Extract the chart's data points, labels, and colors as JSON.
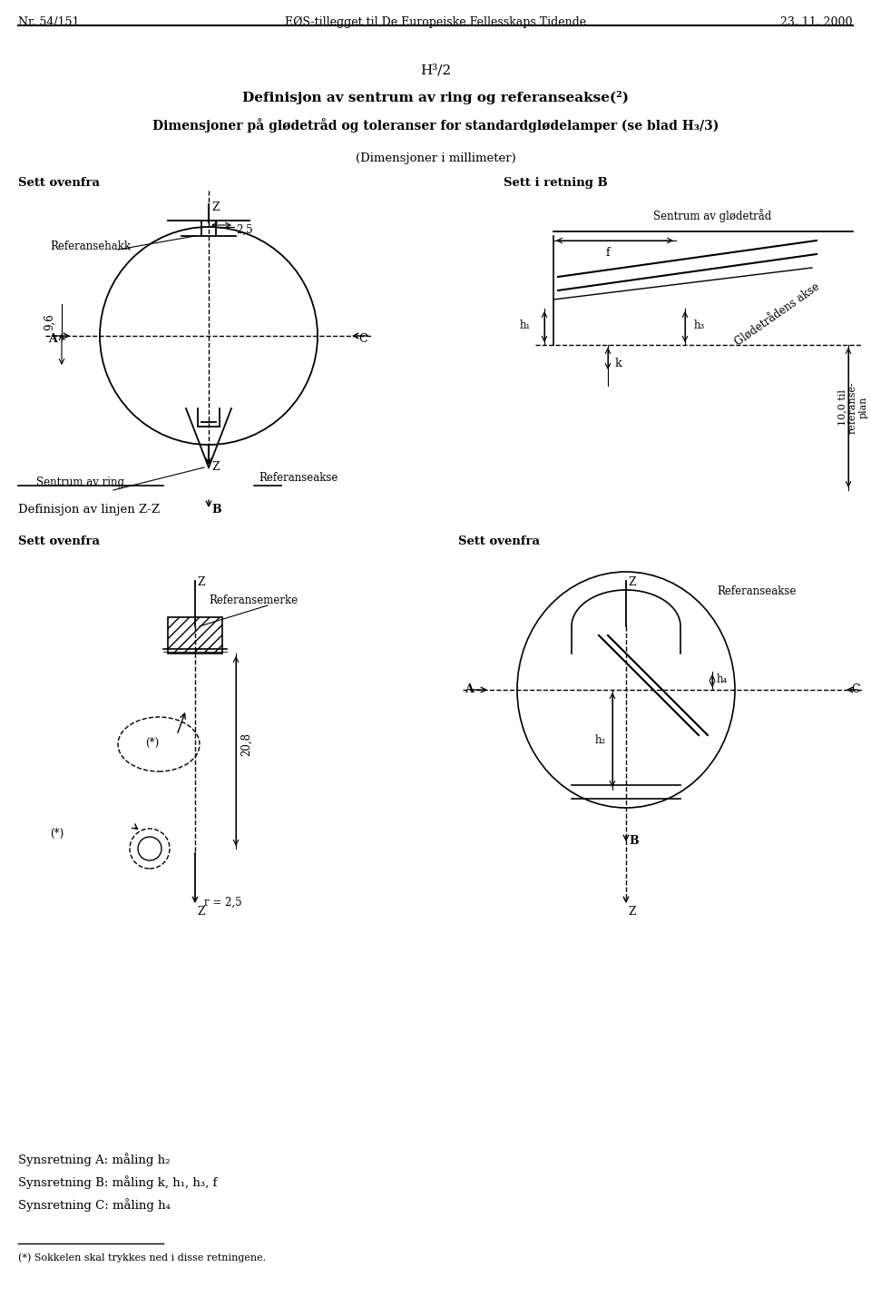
{
  "header_left": "Nr. 54/151",
  "header_center": "EØS-tillegget til De Europeiske Fellesskaps Tidende",
  "header_right": "23. 11. 2000",
  "page_label": "H³/2",
  "title1": "Definisjon av sentrum av ring og referanseakse(²)",
  "title2": "Dimensjoner på glødetråd og toleranser for standardglødelamper (se blad H₃/3)",
  "subtitle": "(Dimensjoner i millimeter)",
  "label_sett_ovenfra_1": "Sett ovenfra",
  "label_sett_retning_b": "Sett i retning B",
  "label_referansehakk": "Referansehakk",
  "label_sentrum_ring": "Sentrum av ring",
  "label_referanseakse": "Referanseakse",
  "label_sentrum_glodetr": "Sentrum av glødetråd",
  "label_glodetradens_akse": "Glødetrådens akse",
  "label_9_6": "9,6",
  "label_2_5": "2,5",
  "label_f": "f",
  "label_h1": "h₁",
  "label_h3": "h₃",
  "label_k": "k",
  "label_10til": "10,0 til\nreferanse-\nplan",
  "label_A": "A",
  "label_B_arrow": "B",
  "label_C": "C",
  "label_Z": "Z",
  "label_definisjon_linje": "Definisjon av linjen Z-Z",
  "label_sett_ovenfra_2": "Sett ovenfra",
  "label_sett_ovenfra_3": "Sett ovenfra",
  "label_referansemerke": "Referansemerke",
  "label_20_8": "20,8",
  "label_r_2_5": "r = 2,5",
  "label_asterisk1": "(*)",
  "label_asterisk2": "(*)",
  "label_referanseakse2": "Referanseakse",
  "label_h2": "h₂",
  "label_h4": "h₄",
  "label_h2b": "h₂",
  "label_synsr_A": "Synsretning A: måling h₂",
  "label_synsr_B": "Synsretning B: måling k, h₁, h₃, f",
  "label_synsr_C": "Synsretning C: måling h₄",
  "footnote": "(*) Sokkelen skal trykkes ned i disse retningene.",
  "bg_color": "#ffffff",
  "line_color": "#000000",
  "text_color": "#000000"
}
